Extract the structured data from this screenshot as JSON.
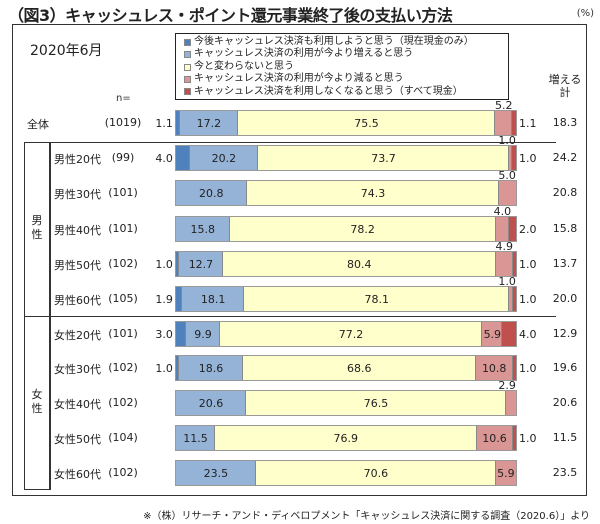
{
  "title": "（図3）キャッシュレス・ポイント還元事業終了後の支払い方法",
  "unit": "(%)",
  "date_label": "2020年6月",
  "n_header": "n=",
  "increase_header": [
    "増える",
    "計"
  ],
  "source": "※（株）リサーチ・アンド・ディベロプメント「キャッシュレス決済に関する調査（2020.6）」より",
  "colors": [
    "#4f81bd",
    "#95b3d7",
    "#ffffcc",
    "#d99694",
    "#c0504d"
  ],
  "groups": [
    {
      "label": [
        "男",
        "性"
      ]
    },
    {
      "label": [
        "女",
        "性"
      ]
    }
  ],
  "chart_data": {
    "type": "bar",
    "orientation": "horizontal",
    "stacked": true,
    "xlim": [
      0,
      100
    ],
    "categories": [
      "全体",
      "男性20代",
      "男性30代",
      "男性40代",
      "男性50代",
      "男性60代",
      "女性20代",
      "女性30代",
      "女性40代",
      "女性50代",
      "女性60代"
    ],
    "n": [
      "(1019)",
      "(99)",
      "(101)",
      "(101)",
      "(102)",
      "(105)",
      "(101)",
      "(102)",
      "(102)",
      "(104)",
      "(102)"
    ],
    "series": [
      {
        "name": "今後キャッシュレス決済も利用しようと思う（現在現金のみ）",
        "values": [
          1.1,
          4.0,
          0,
          0,
          1.0,
          1.9,
          3.0,
          1.0,
          0,
          0,
          0
        ]
      },
      {
        "name": "キャッシュレス決済の利用が今より増えると思う",
        "values": [
          17.2,
          20.2,
          20.8,
          15.8,
          12.7,
          18.1,
          9.9,
          18.6,
          20.6,
          11.5,
          23.5
        ]
      },
      {
        "name": "今と変わらないと思う",
        "values": [
          75.5,
          73.7,
          74.3,
          78.2,
          80.4,
          78.1,
          77.2,
          68.6,
          76.5,
          76.9,
          70.6
        ]
      },
      {
        "name": "キャッシュレス決済の利用が今より減ると思う",
        "values": [
          5.2,
          1.0,
          5.0,
          4.0,
          4.9,
          1.0,
          5.9,
          10.8,
          2.9,
          10.6,
          5.9
        ]
      },
      {
        "name": "キャッシュレス決済を利用しなくなると思う（すべて現金）",
        "values": [
          1.1,
          1.0,
          0,
          2.0,
          1.0,
          1.0,
          4.0,
          1.0,
          0,
          1.0,
          0
        ]
      }
    ],
    "increase_total": [
      "18.3",
      "24.2",
      "20.8",
      "15.8",
      "13.7",
      "20.0",
      "12.9",
      "19.6",
      "20.6",
      "11.5",
      "23.5"
    ],
    "legend_position": "top"
  }
}
